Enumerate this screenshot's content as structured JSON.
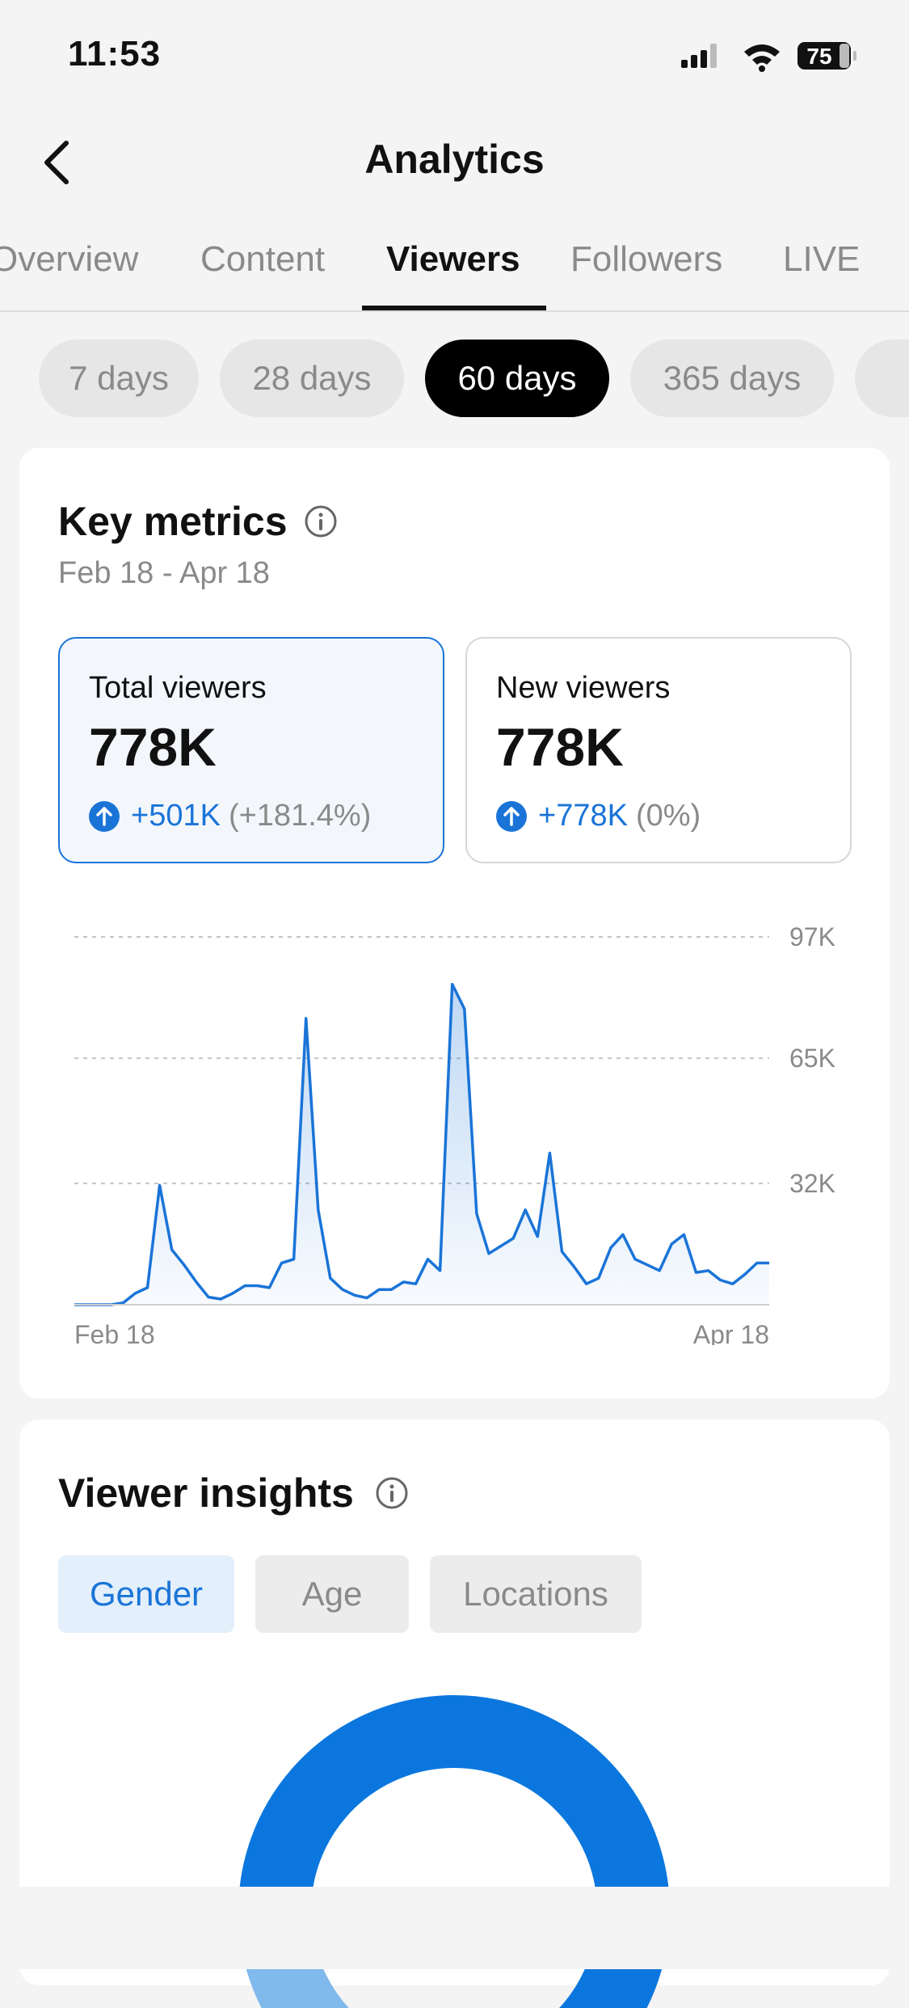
{
  "status": {
    "time": "11:53",
    "battery": "75"
  },
  "header": {
    "title": "Analytics"
  },
  "tabs": [
    {
      "label": "Overview"
    },
    {
      "label": "Content"
    },
    {
      "label": "Viewers"
    },
    {
      "label": "Followers"
    },
    {
      "label": "LIVE"
    }
  ],
  "active_tab": "Viewers",
  "ranges": [
    {
      "label": "7 days"
    },
    {
      "label": "28 days"
    },
    {
      "label": "60 days"
    },
    {
      "label": "365 days"
    }
  ],
  "active_range": "60 days",
  "key_metrics": {
    "title": "Key metrics",
    "date_range": "Feb 18 - Apr 18",
    "total": {
      "label": "Total viewers",
      "value": "778K",
      "change": "+501K",
      "pct": "(+181.4%)"
    },
    "new": {
      "label": "New viewers",
      "value": "778K",
      "change": "+778K",
      "pct": "(0%)"
    }
  },
  "chart_data": {
    "type": "area",
    "x_start_label": "Feb 18",
    "x_end_label": "Apr 18",
    "y_ticks": [
      {
        "value": 32000,
        "label": "32K"
      },
      {
        "value": 65000,
        "label": "65K"
      },
      {
        "value": 97000,
        "label": "97K"
      }
    ],
    "ylim": [
      0,
      97000
    ],
    "grid": true,
    "color": "#1a74d8",
    "values": [
      0,
      0,
      0,
      0,
      500,
      3000,
      4500,
      31500,
      14500,
      10500,
      6000,
      2000,
      1500,
      3000,
      5000,
      5000,
      4500,
      11000,
      12000,
      75500,
      25000,
      7000,
      4000,
      2500,
      1800,
      4000,
      4000,
      6000,
      5500,
      12000,
      9000,
      84500,
      78000,
      24000,
      13500,
      15500,
      17500,
      25000,
      18000,
      40000,
      14000,
      10000,
      5500,
      7000,
      15000,
      18500,
      12000,
      10500,
      9000,
      16000,
      18500,
      8500,
      9000,
      6500,
      5500,
      8000,
      11000,
      11000
    ]
  },
  "viewer_insights": {
    "title": "Viewer insights",
    "segments": [
      {
        "label": "Gender"
      },
      {
        "label": "Age"
      },
      {
        "label": "Locations"
      }
    ],
    "active_segment": "Gender",
    "donut": {
      "values": [
        0.68,
        0.32
      ],
      "colors": [
        "#0b77de",
        "#80b9ec"
      ]
    }
  }
}
